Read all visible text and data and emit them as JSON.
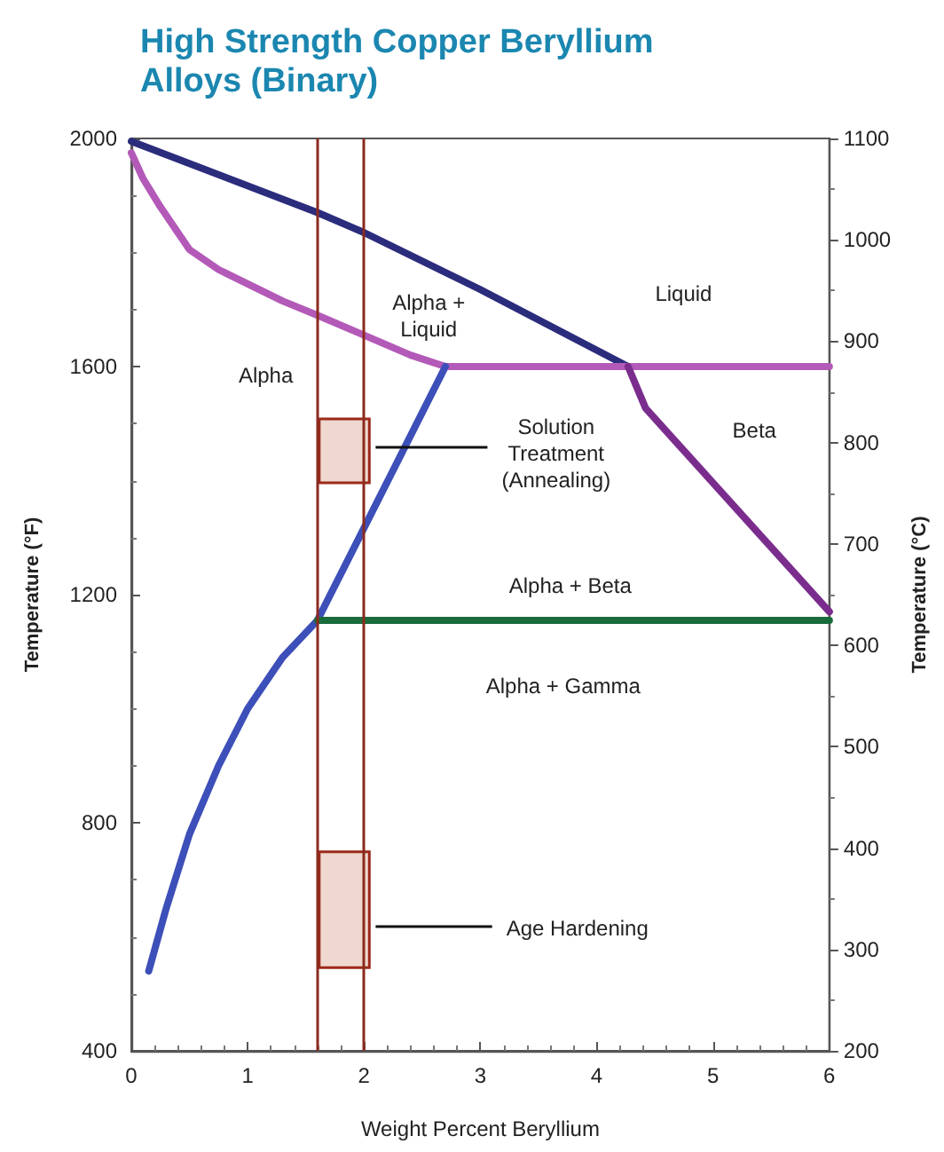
{
  "chart_data": {
    "type": "line",
    "title": "High Strength Copper Beryllium Alloys (Binary)",
    "xlabel": "Weight Percent Beryllium",
    "ylabel": "Temperature (°F)",
    "y2label": "Temperature (°C)",
    "xlim": [
      0,
      6
    ],
    "xticks": [
      0,
      1,
      2,
      3,
      4,
      5,
      6
    ],
    "ylim": [
      400,
      2000
    ],
    "yticks": [
      400,
      800,
      1200,
      1600,
      2000
    ],
    "y2lim": [
      200,
      1100
    ],
    "y2ticks": [
      200,
      300,
      400,
      500,
      600,
      700,
      800,
      900,
      1000,
      1100
    ],
    "grid": false,
    "marker": "none",
    "line_style": "solid",
    "series": [
      {
        "color": "#2b2c7c",
        "x": [
          0,
          1.6,
          2,
          3,
          4.27
        ],
        "values": [
          1995,
          1870,
          1835,
          1735,
          1600
        ]
      },
      {
        "color": "#b35ab8",
        "x": [
          0,
          0.1,
          0.25,
          0.5,
          0.75,
          1,
          1.3,
          1.6,
          2,
          2.4,
          2.7,
          6
        ],
        "values": [
          1975,
          1930,
          1880,
          1805,
          1770,
          1745,
          1715,
          1690,
          1655,
          1620,
          1600,
          1600
        ]
      },
      {
        "color": "#3d4fb8",
        "x": [
          0.15,
          0.3,
          0.5,
          0.75,
          1,
          1.3,
          1.6,
          2.7
        ],
        "values": [
          540,
          650,
          780,
          900,
          1000,
          1090,
          1155,
          1600
        ]
      },
      {
        "color": "#7b2d8e",
        "x": [
          4.27,
          4.42,
          6
        ],
        "values": [
          1600,
          1527,
          1170
        ]
      },
      {
        "color": "#1a6b3c",
        "x": [
          1.6,
          6
        ],
        "values": [
          1155,
          1155
        ]
      },
      {
        "type": "bar",
        "color": "#efd8cf",
        "x": [
          1.8,
          1.8
        ],
        "base": [
          1396,
          546
        ],
        "values": [
          112,
          203
        ]
      }
    ],
    "ref_lines": [
      {
        "axis": "x",
        "value": 1.6,
        "color": "#8b2a1e"
      },
      {
        "axis": "x",
        "value": 2,
        "color": "#8b2a1e"
      }
    ],
    "annotations": [
      "Alpha +\nLiquid",
      "Liquid",
      "Alpha",
      {
        "text": "Solution\nTreatment\n(Annealing)",
        "x": 2.1,
        "y": 1460
      },
      "Beta",
      "Alpha + Beta",
      "Alpha + Gamma",
      {
        "text": "Age Hardening",
        "x": 2.1,
        "y": 618
      }
    ]
  }
}
